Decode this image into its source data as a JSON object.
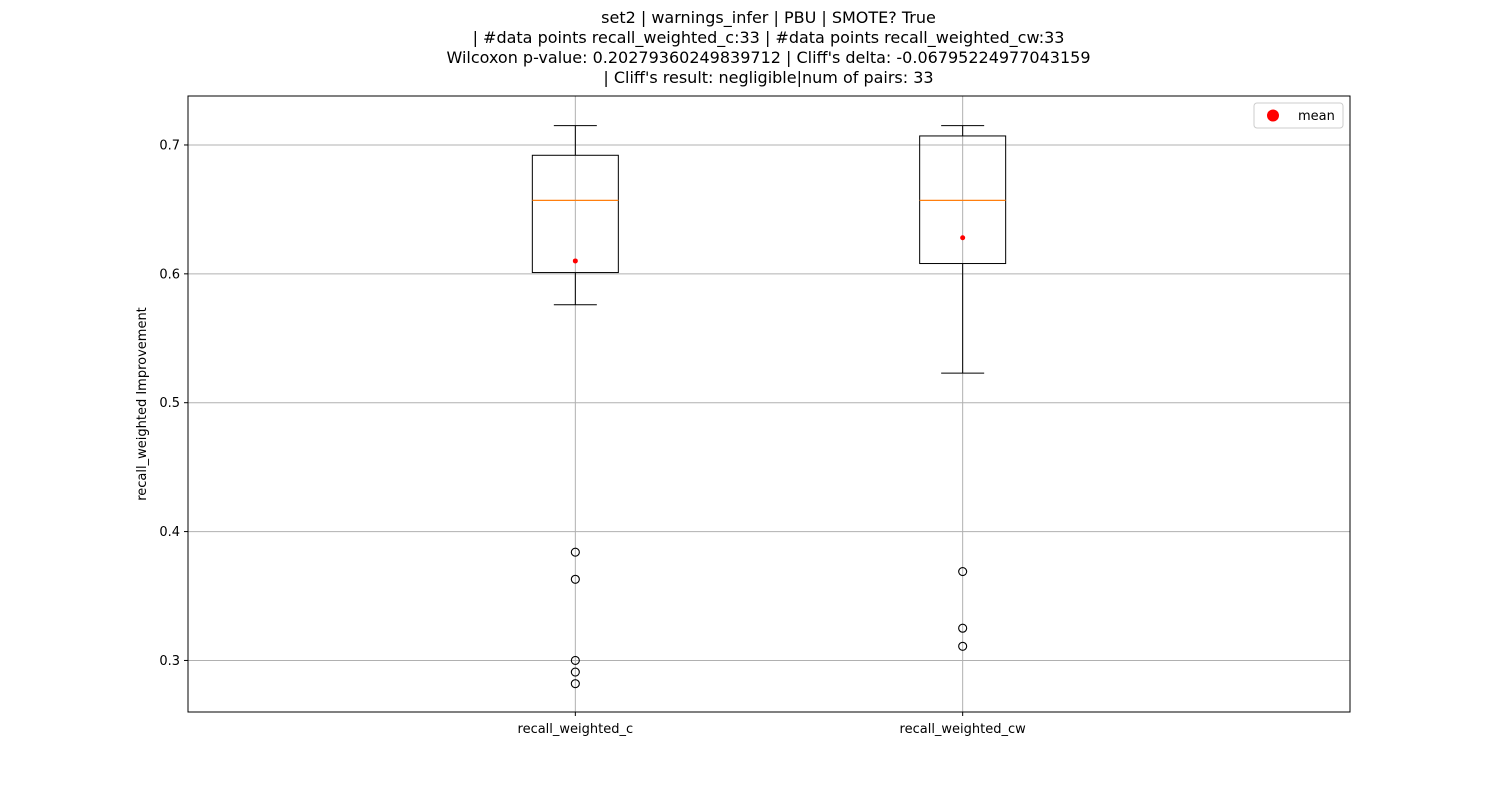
{
  "title_lines": [
    "set2 | warnings_infer | PBU | SMOTE? True",
    "| #data points recall_weighted_c:33 | #data points recall_weighted_cw:33",
    "Wilcoxon p-value: 0.20279360249839712 | Cliff's delta: -0.06795224977043159",
    "| Cliff's result: negligible|num of pairs: 33"
  ],
  "chart_data": {
    "type": "box",
    "title": "set2 | warnings_infer | PBU | SMOTE? True | #data points recall_weighted_c:33 | #data points recall_weighted_cw:33 Wilcoxon p-value: 0.20279360249839712 | Cliff's delta: -0.06795224977043159 | Cliff's result: negligible|num of pairs: 33",
    "xlabel": "",
    "ylabel": "recall_weighted Improvement",
    "ylim": [
      0.26,
      0.738
    ],
    "yticks": [
      "0.3",
      "0.4",
      "0.5",
      "0.6",
      "0.7"
    ],
    "grid": true,
    "legend": {
      "placement": "top-right",
      "entries": [
        "mean"
      ]
    },
    "categories": [
      "recall_weighted_c",
      "recall_weighted_cw"
    ],
    "boxes": [
      {
        "name": "recall_weighted_c",
        "whisker_low": 0.576,
        "q1": 0.601,
        "median": 0.657,
        "q3": 0.692,
        "whisker_high": 0.715,
        "mean": 0.61,
        "outliers": [
          0.384,
          0.363,
          0.3,
          0.291,
          0.282
        ]
      },
      {
        "name": "recall_weighted_cw",
        "whisker_low": 0.523,
        "q1": 0.608,
        "median": 0.657,
        "q3": 0.707,
        "whisker_high": 0.715,
        "mean": 0.628,
        "outliers": [
          0.369,
          0.325,
          0.311
        ]
      }
    ],
    "colors": {
      "median": "#ff7f0e",
      "mean": "#ff0000",
      "grid": "#b0b0b0",
      "box": "#000000"
    }
  }
}
